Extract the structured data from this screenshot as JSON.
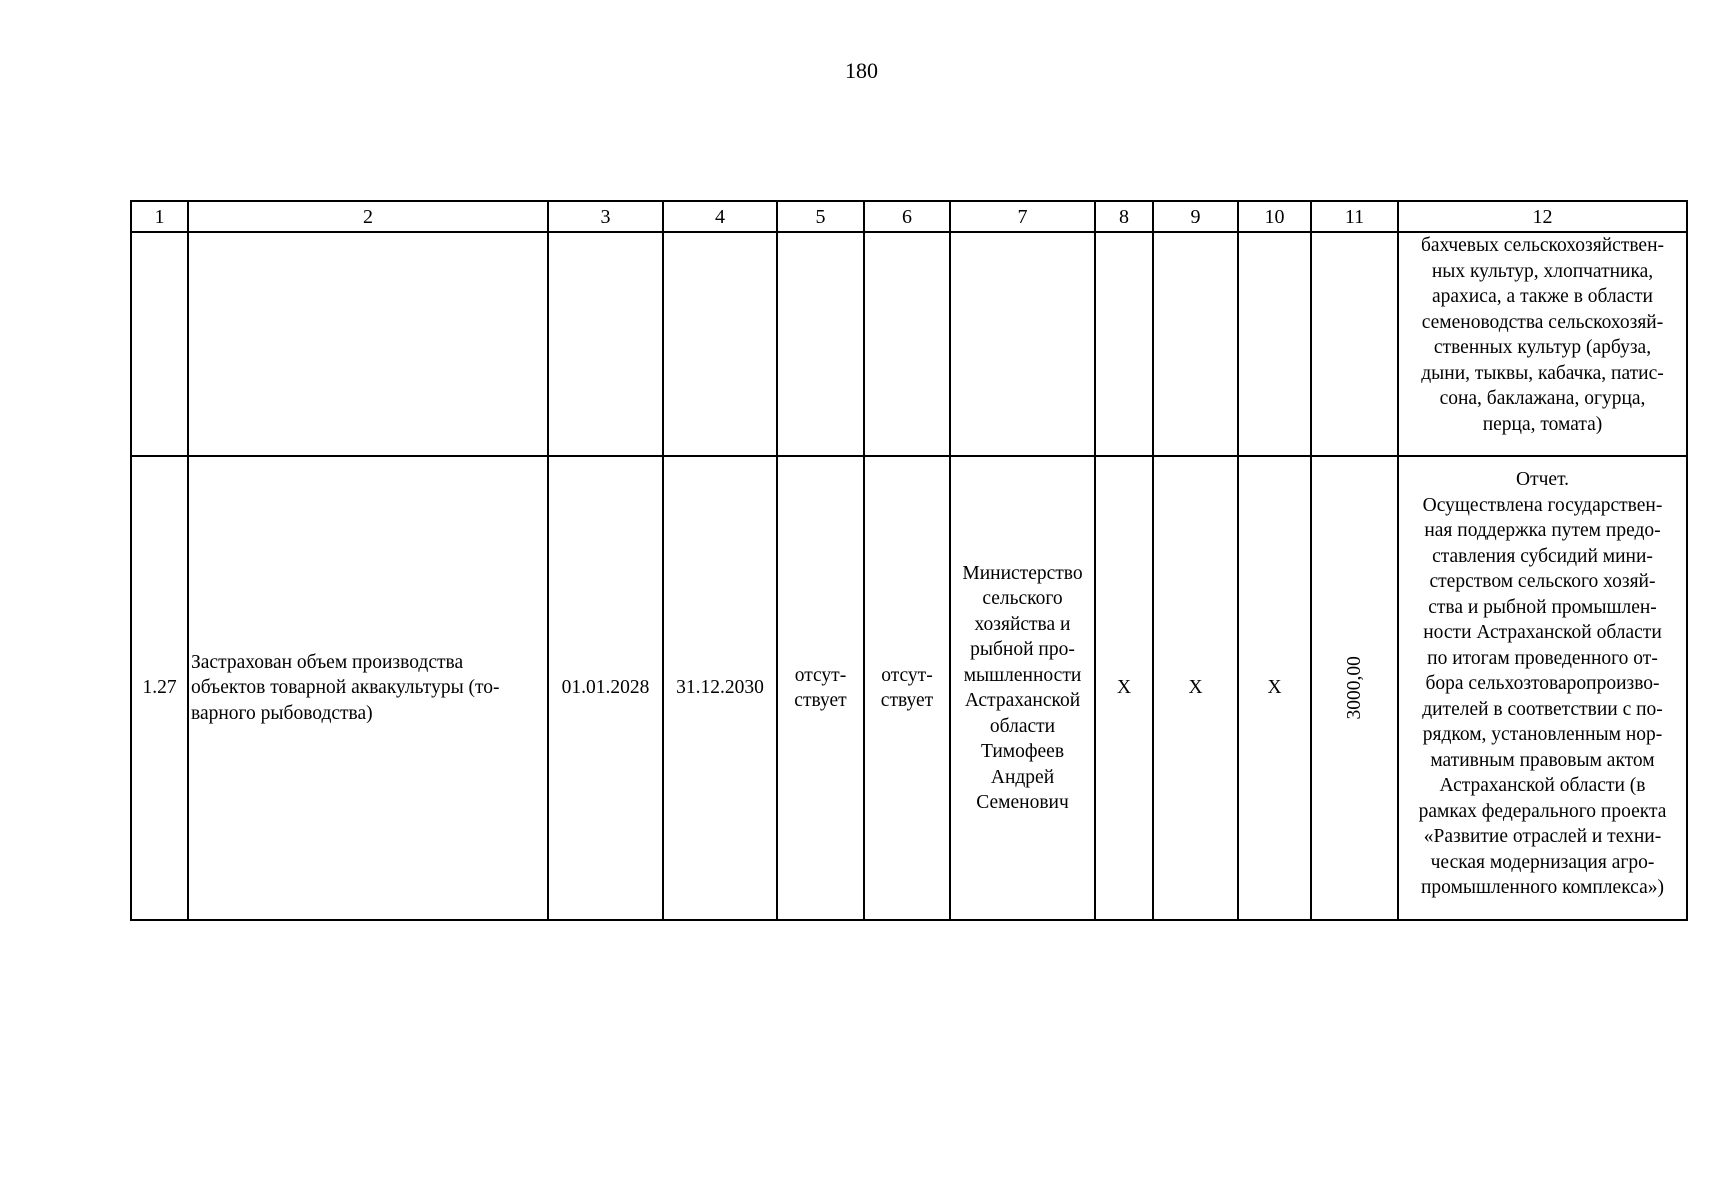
{
  "page_number": "180",
  "table": {
    "headers": [
      "1",
      "2",
      "3",
      "4",
      "5",
      "6",
      "7",
      "8",
      "9",
      "10",
      "11",
      "12"
    ],
    "rows": [
      {
        "cells": [
          "",
          "",
          "",
          "",
          "",
          "",
          "",
          "",
          "",
          "",
          "",
          "бахчевых сельскохозяйствен-\nных культур, хлопчатника,\nарахиса, а также в области\nсеменоводства сельскохозяй-\nственных культур (арбуза,\nдыни, тыквы, кабачка, патис-\nсона, баклажана, огурца,\nперца, томата)"
        ]
      },
      {
        "cells": [
          "1.27",
          "Застрахован объем производства\nобъектов товарной аквакультуры (то-\nварного рыбоводства)",
          "01.01.2028",
          "31.12.2030",
          "отсут-\nствует",
          "отсут-\nствует",
          "Министерство\nсельского\nхозяйства и\nрыбной про-\nмышленности\nАстраханской\nобласти\nТимофеев\nАндрей\nСеменович",
          "X",
          "X",
          "X",
          "3000,00",
          "Отчет.\nОсуществлена государствен-\nная поддержка путем предо-\nставления субсидий мини-\nстерством сельского хозяй-\nства и рыбной промышлен-\nности Астраханской области\nпо итогам проведенного от-\nбора  сельхозтоваропроизво-\nдителей в соответствии с по-\nрядком, установленным нор-\nмативным правовым актом\nАстраханской области (в\nрамках федерального проекта\n«Развитие отраслей и техни-\nческая модернизация агро-\nпромышленного комплекса»)"
        ]
      }
    ]
  }
}
